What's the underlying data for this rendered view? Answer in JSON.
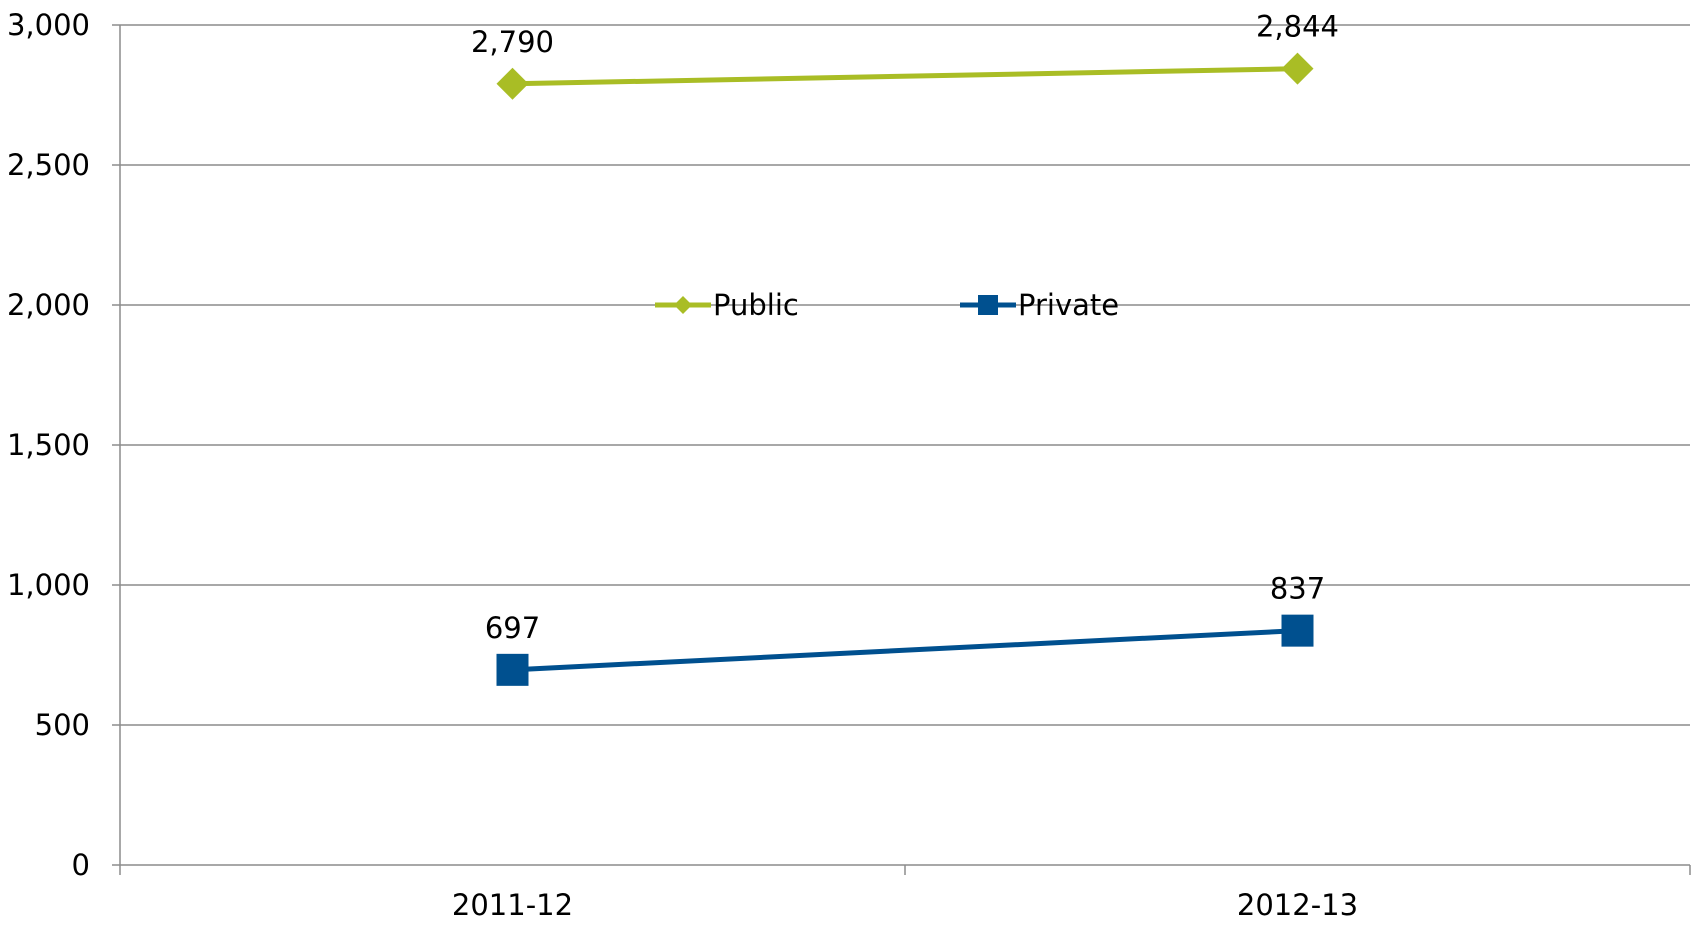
{
  "chart_data": {
    "type": "line",
    "title": "",
    "xlabel": "",
    "ylabel": "",
    "categories": [
      "2011-12",
      "2012-13"
    ],
    "ylim": [
      0,
      3000
    ],
    "yticks": [
      0,
      500,
      1000,
      1500,
      2000,
      2500,
      3000
    ],
    "ytick_labels": [
      "0",
      "500",
      "1,000",
      "1,500",
      "2,000",
      "2,500",
      "3,000"
    ],
    "grid": true,
    "legend_position": "center",
    "series": [
      {
        "name": "Public",
        "values": [
          2790,
          2844
        ],
        "value_labels": [
          "2,790",
          "2,844"
        ],
        "color": "#a9bd25",
        "marker": "diamond"
      },
      {
        "name": "Private",
        "values": [
          697,
          837
        ],
        "value_labels": [
          "697",
          "837"
        ],
        "color": "#00508f",
        "marker": "square"
      }
    ]
  }
}
